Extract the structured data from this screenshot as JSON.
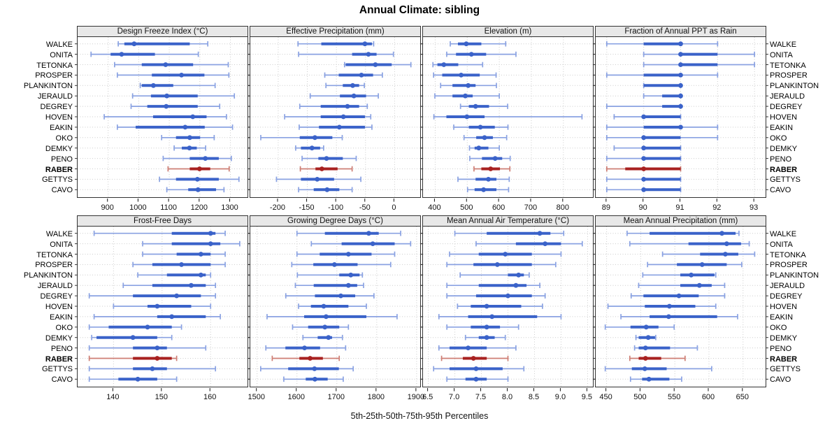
{
  "chart_data": {
    "type": "dotplot",
    "title": "Annual Climate: sibling",
    "caption": "5th-25th-50th-75th-95th Percentiles",
    "percentiles": [
      5,
      25,
      50,
      75,
      95
    ],
    "stations": [
      "WALKE",
      "ONITA",
      "TETONKA",
      "PROSPER",
      "PLANKINTON",
      "JERAULD",
      "DEGREY",
      "HOVEN",
      "EAKIN",
      "OKO",
      "DEMKY",
      "PENO",
      "RABER",
      "GETTYS",
      "CAVO"
    ],
    "highlight_station": "RABER",
    "legend_position": "none",
    "grid": "dotted",
    "colors": {
      "blue_main": "#3A62C9",
      "blue_light": "#8AA2E2",
      "red_main": "#A82120",
      "red_light": "#CE7E74",
      "grid": "#CCCCCC",
      "strip_bg": "#E8E8E8",
      "border": "#333333"
    },
    "panels": [
      {
        "label": "Design Freeze Index (°C)",
        "row": "top",
        "col": 0,
        "xlim": [
          800,
          1356
        ],
        "ticks": [
          900,
          1000,
          1100,
          1200,
          1300
        ],
        "tick_labels": [
          "900",
          "1000",
          "1100",
          "1200",
          "1300"
        ],
        "values": [
          [
            933,
            953,
            985,
            1167,
            1226
          ],
          [
            844,
            908,
            944,
            1053,
            1195
          ],
          [
            921,
            1010,
            1088,
            1178,
            1293
          ],
          [
            930,
            1043,
            1140,
            1215,
            1295
          ],
          [
            1005,
            1010,
            1048,
            1113,
            1250
          ],
          [
            980,
            1040,
            1092,
            1193,
            1313
          ],
          [
            975,
            1028,
            1090,
            1193,
            1265
          ],
          [
            887,
            1047,
            1177,
            1222,
            1287
          ],
          [
            930,
            990,
            1152,
            1216,
            1307
          ],
          [
            1075,
            1122,
            1167,
            1201,
            1247
          ],
          [
            1116,
            1141,
            1166,
            1190,
            1219
          ],
          [
            1080,
            1167,
            1218,
            1262,
            1303
          ],
          [
            1096,
            1167,
            1199,
            1234,
            1296
          ],
          [
            1068,
            1122,
            1192,
            1262,
            1328
          ],
          [
            1092,
            1162,
            1194,
            1253,
            1279
          ]
        ]
      },
      {
        "label": "Effective Precipitation (mm)",
        "row": "top",
        "col": 1,
        "xlim": [
          -248,
          44
        ],
        "ticks": [
          -200,
          -150,
          -100,
          -50,
          0
        ],
        "tick_labels": [
          "-200",
          "-150",
          "-100",
          "-50",
          "0"
        ],
        "values": [
          [
            -166,
            -126,
            -51,
            -39,
            -36
          ],
          [
            -165,
            -73,
            -45,
            -31,
            -2
          ],
          [
            -86,
            -84,
            -33,
            -5,
            28
          ],
          [
            -120,
            -96,
            -57,
            -37,
            -21
          ],
          [
            -118,
            -89,
            -72,
            -61,
            -52
          ],
          [
            -145,
            -94,
            -70,
            -49,
            -28
          ],
          [
            -163,
            -127,
            -81,
            -61,
            -47
          ],
          [
            -189,
            -127,
            -88,
            -51,
            -41
          ],
          [
            -164,
            -130,
            -95,
            -51,
            -39
          ],
          [
            -230,
            -163,
            -137,
            -107,
            -90
          ],
          [
            -170,
            -161,
            -142,
            -128,
            -122
          ],
          [
            -159,
            -131,
            -117,
            -89,
            -66
          ],
          [
            -162,
            -136,
            -125,
            -98,
            -73
          ],
          [
            -203,
            -161,
            -133,
            -104,
            -58
          ],
          [
            -165,
            -139,
            -116,
            -95,
            -73
          ]
        ]
      },
      {
        "label": "Elevation (m)",
        "row": "top",
        "col": 2,
        "xlim": [
          362,
          892
        ],
        "ticks": [
          400,
          500,
          600,
          700,
          800
        ],
        "tick_labels": [
          "400",
          "500",
          "600",
          "700",
          "800"
        ],
        "values": [
          [
            447,
            471,
            497,
            544,
            620
          ],
          [
            436,
            465,
            513,
            559,
            652
          ],
          [
            393,
            407,
            427,
            472,
            548
          ],
          [
            395,
            422,
            481,
            539,
            590
          ],
          [
            417,
            454,
            503,
            526,
            591
          ],
          [
            399,
            454,
            494,
            517,
            600
          ],
          [
            479,
            505,
            526,
            568,
            626
          ],
          [
            396,
            435,
            499,
            554,
            858
          ],
          [
            458,
            505,
            541,
            586,
            627
          ],
          [
            490,
            528,
            554,
            580,
            623
          ],
          [
            507,
            523,
            536,
            566,
            600
          ],
          [
            508,
            546,
            587,
            609,
            634
          ],
          [
            521,
            544,
            573,
            602,
            633
          ],
          [
            471,
            526,
            566,
            591,
            631
          ],
          [
            501,
            523,
            551,
            591,
            629
          ]
        ]
      },
      {
        "label": "Fraction of Annual PPT as Rain",
        "row": "top",
        "col": 3,
        "xlim": [
          88.7,
          93.3
        ],
        "ticks": [
          89,
          90,
          91,
          92,
          93
        ],
        "tick_labels": [
          "89",
          "90",
          "91",
          "92",
          "93"
        ],
        "values": [
          [
            89,
            90,
            91,
            91,
            92
          ],
          [
            90,
            91,
            91,
            92,
            93
          ],
          [
            90,
            91,
            91,
            92,
            93
          ],
          [
            89,
            90,
            91,
            91,
            92
          ],
          [
            90,
            90,
            91,
            91,
            91
          ],
          [
            90,
            90.5,
            91,
            91,
            91
          ],
          [
            89,
            90.5,
            91,
            91,
            91
          ],
          [
            89.2,
            90,
            90,
            91,
            91
          ],
          [
            89,
            90,
            91,
            91,
            92
          ],
          [
            89,
            90,
            90,
            91,
            92
          ],
          [
            89.2,
            90,
            90,
            91,
            91
          ],
          [
            89,
            90,
            90,
            91,
            91
          ],
          [
            89,
            89.5,
            90,
            91,
            91
          ],
          [
            89,
            90,
            90,
            91,
            91
          ],
          [
            89,
            90,
            90,
            91,
            91
          ]
        ]
      },
      {
        "label": "Frost-Free Days",
        "row": "bottom",
        "col": 0,
        "xlim": [
          132.6,
          167.6
        ],
        "ticks": [
          140,
          150,
          160
        ],
        "tick_labels": [
          "140",
          "150",
          "160"
        ],
        "values": [
          [
            136,
            152,
            160,
            161,
            163
          ],
          [
            146,
            152,
            160,
            162,
            166
          ],
          [
            146,
            153,
            158,
            160,
            163
          ],
          [
            144,
            148,
            154,
            160,
            163
          ],
          [
            145,
            151,
            158,
            159,
            160
          ],
          [
            142,
            148,
            156,
            159,
            161
          ],
          [
            135,
            144,
            153,
            158,
            161
          ],
          [
            140,
            147,
            149,
            156,
            160
          ],
          [
            136,
            149,
            152,
            159,
            162
          ],
          [
            135,
            139,
            147,
            152,
            154
          ],
          [
            135.5,
            136.5,
            144,
            149,
            152
          ],
          [
            135,
            144,
            149,
            151,
            159
          ],
          [
            135,
            144,
            149,
            152,
            153
          ],
          [
            135,
            144,
            148,
            151,
            161
          ],
          [
            135,
            141,
            145,
            149,
            153
          ]
        ]
      },
      {
        "label": "Growing Degree Days (°C)",
        "row": "bottom",
        "col": 1,
        "xlim": [
          1483,
          1909
        ],
        "ticks": [
          1500,
          1600,
          1700,
          1800,
          1900
        ],
        "tick_labels": [
          "1500",
          "1600",
          "1700",
          "1800",
          "1900"
        ],
        "values": [
          [
            1600,
            1670,
            1780,
            1805,
            1860
          ],
          [
            1636,
            1712,
            1790,
            1845,
            1885
          ],
          [
            1600,
            1657,
            1729,
            1787,
            1845
          ],
          [
            1587,
            1641,
            1694,
            1752,
            1835
          ],
          [
            1601,
            1706,
            1735,
            1757,
            1764
          ],
          [
            1596,
            1642,
            1729,
            1751,
            1767
          ],
          [
            1572,
            1645,
            1710,
            1746,
            1793
          ],
          [
            1604,
            1635,
            1667,
            1729,
            1774
          ],
          [
            1525,
            1618,
            1673,
            1774,
            1851
          ],
          [
            1589,
            1628,
            1670,
            1706,
            1729
          ],
          [
            1615,
            1652,
            1679,
            1688,
            1714
          ],
          [
            1522,
            1571,
            1619,
            1658,
            1722
          ],
          [
            1538,
            1606,
            1633,
            1665,
            1706
          ],
          [
            1509,
            1578,
            1644,
            1705,
            1741
          ],
          [
            1567,
            1622,
            1645,
            1677,
            1716
          ]
        ]
      },
      {
        "label": "Mean Annual Air Temperature (°C)",
        "row": "bottom",
        "col": 2,
        "xlim": [
          6.4,
          9.6
        ],
        "ticks": [
          6.5,
          7.0,
          7.5,
          8.0,
          8.5,
          9.0,
          9.5
        ],
        "tick_labels": [
          "6.5",
          "7.0",
          "7.5",
          "8.0",
          "8.5",
          "9.0",
          "9.5"
        ],
        "values": [
          [
            7.0,
            7.6,
            8.6,
            8.8,
            9.05
          ],
          [
            7.4,
            8.15,
            8.7,
            9.0,
            9.4
          ],
          [
            6.9,
            7.45,
            7.95,
            8.45,
            9.0
          ],
          [
            6.85,
            7.35,
            7.8,
            8.45,
            8.9
          ],
          [
            7.1,
            8.0,
            8.2,
            8.3,
            8.4
          ],
          [
            6.85,
            7.45,
            8.15,
            8.35,
            8.6
          ],
          [
            6.85,
            7.4,
            8.0,
            8.45,
            8.7
          ],
          [
            7.05,
            7.3,
            7.6,
            8.25,
            8.65
          ],
          [
            6.7,
            7.25,
            7.7,
            8.55,
            9.0
          ],
          [
            6.85,
            7.3,
            7.6,
            7.85,
            8.2
          ],
          [
            7.2,
            7.45,
            7.6,
            7.75,
            7.95
          ],
          [
            6.7,
            6.9,
            7.25,
            7.6,
            8.15
          ],
          [
            6.75,
            7.15,
            7.35,
            7.6,
            8.0
          ],
          [
            6.6,
            6.9,
            7.4,
            7.9,
            8.3
          ],
          [
            6.85,
            7.2,
            7.4,
            7.6,
            8.0
          ]
        ]
      },
      {
        "label": "Mean Annual Precipitation (mm)",
        "row": "bottom",
        "col": 3,
        "xlim": [
          434,
          683
        ],
        "ticks": [
          450,
          500,
          550,
          600,
          650
        ],
        "tick_labels": [
          "450",
          "500",
          "550",
          "600",
          "650"
        ],
        "values": [
          [
            480,
            513,
            619,
            639,
            644
          ],
          [
            484,
            570,
            626,
            647,
            659
          ],
          [
            532,
            587,
            624,
            643,
            667
          ],
          [
            510,
            553,
            590,
            626,
            648
          ],
          [
            503,
            558,
            574,
            608,
            610
          ],
          [
            497,
            558,
            586,
            604,
            623
          ],
          [
            486,
            504,
            556,
            585,
            623
          ],
          [
            452,
            506,
            542,
            580,
            610
          ],
          [
            471,
            513,
            541,
            612,
            642
          ],
          [
            448,
            485,
            508,
            526,
            549
          ],
          [
            493,
            497,
            511,
            521,
            522
          ],
          [
            491,
            497,
            507,
            543,
            583
          ],
          [
            484,
            497,
            507,
            530,
            565
          ],
          [
            448,
            487,
            506,
            538,
            604
          ],
          [
            485,
            502,
            512,
            542,
            560
          ]
        ]
      }
    ]
  }
}
